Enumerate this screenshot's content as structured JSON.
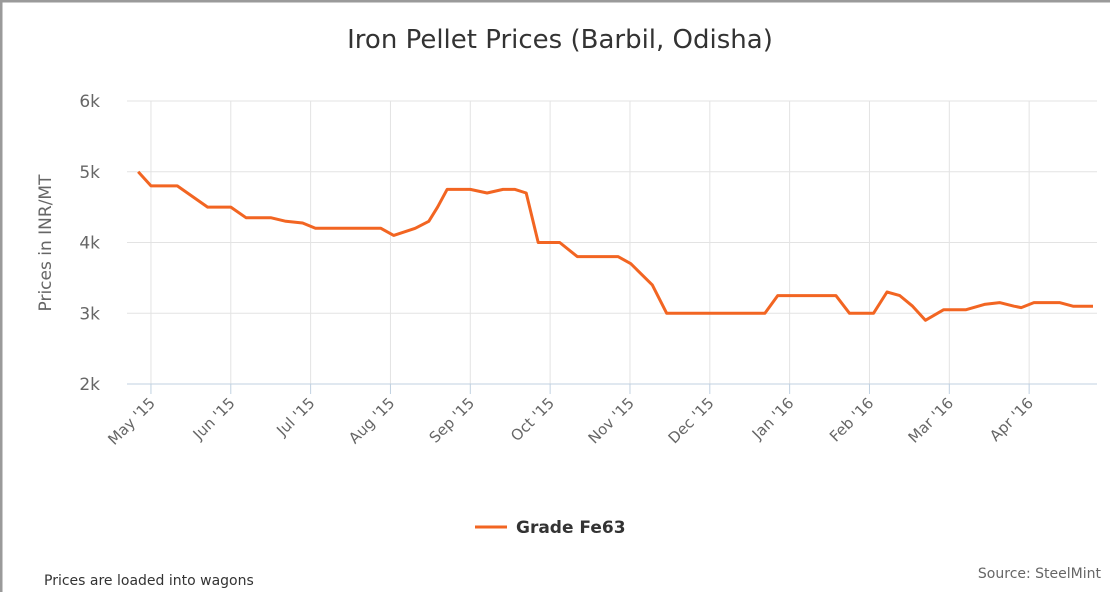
{
  "chart_data": {
    "type": "line",
    "title": "Iron Pellet Prices (Barbil, Odisha)",
    "y_label": "Prices in INR/MT",
    "note": "Prices are loaded into wagons",
    "source": "Source: SteelMint",
    "x": [
      -0.16,
      0,
      0.33,
      0.71,
      1.0,
      1.19,
      1.5,
      1.69,
      1.9,
      2.06,
      2.88,
      3.04,
      3.31,
      3.48,
      3.59,
      3.71,
      4.0,
      4.21,
      4.41,
      4.56,
      4.7,
      4.85,
      5.12,
      5.34,
      5.85,
      6.01,
      6.28,
      6.46,
      7.69,
      7.85,
      8.58,
      8.75,
      9.05,
      9.22,
      9.38,
      9.54,
      9.7,
      9.93,
      10.21,
      10.44,
      10.63,
      10.81,
      10.9,
      11.06,
      11.38,
      11.55,
      11.8
    ],
    "series": [
      {
        "name": "Grade Fe63",
        "color": "#f26522",
        "values": [
          5000,
          4800,
          4800,
          4500,
          4500,
          4350,
          4350,
          4300,
          4275,
          4200,
          4200,
          4100,
          4200,
          4300,
          4500,
          4750,
          4750,
          4700,
          4750,
          4750,
          4700,
          4000,
          4000,
          3800,
          3800,
          3700,
          3400,
          3000,
          3000,
          3250,
          3250,
          3000,
          3000,
          3300,
          3250,
          3100,
          2900,
          3050,
          3050,
          3125,
          3150,
          3100,
          3080,
          3150,
          3150,
          3100,
          3100
        ]
      }
    ],
    "xlim": [
      -0.3,
      11.85
    ],
    "xticks": [
      {
        "value": 0,
        "label": "May '15"
      },
      {
        "value": 1,
        "label": "Jun '15"
      },
      {
        "value": 2,
        "label": "Jul '15"
      },
      {
        "value": 3,
        "label": "Aug '15"
      },
      {
        "value": 4,
        "label": "Sep '15"
      },
      {
        "value": 5,
        "label": "Oct '15"
      },
      {
        "value": 6,
        "label": "Nov '15"
      },
      {
        "value": 7,
        "label": "Dec '15"
      },
      {
        "value": 8,
        "label": "Jan '16"
      },
      {
        "value": 9,
        "label": "Feb '16"
      },
      {
        "value": 10,
        "label": "Mar '16"
      },
      {
        "value": 11,
        "label": "Apr '16"
      }
    ],
    "ylim": [
      2000,
      6000
    ],
    "yticks": [
      {
        "value": 2000,
        "label": "2k"
      },
      {
        "value": 3000,
        "label": "3k"
      },
      {
        "value": 4000,
        "label": "4k"
      },
      {
        "value": 5000,
        "label": "5k"
      },
      {
        "value": 6000,
        "label": "6k"
      }
    ],
    "grid": true
  }
}
